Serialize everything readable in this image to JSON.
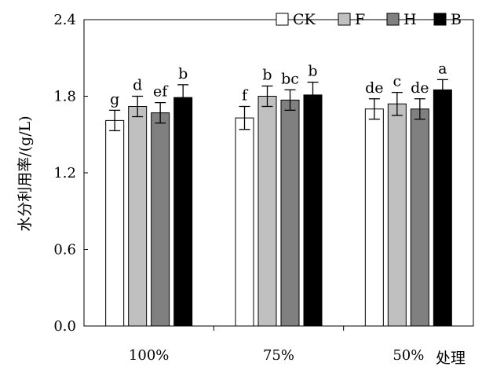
{
  "chart_data": {
    "type": "bar",
    "title": "",
    "xlabel": "处理",
    "ylabel": "水分利用率/(g/L)",
    "ylim": [
      0,
      2.4
    ],
    "yticks": [
      "0.0",
      "0.6",
      "1.2",
      "1.8",
      "2.4"
    ],
    "categories": [
      "100%",
      "75%",
      "50%"
    ],
    "legend_position": "top-right",
    "series": [
      {
        "name": "CK",
        "color": "#ffffff",
        "values": [
          1.61,
          1.63,
          1.7
        ],
        "errors": [
          0.08,
          0.09,
          0.08
        ],
        "letters": [
          "g",
          "f",
          "de"
        ]
      },
      {
        "name": "F",
        "color": "#c0c0c0",
        "values": [
          1.72,
          1.8,
          1.74
        ],
        "errors": [
          0.08,
          0.08,
          0.09
        ],
        "letters": [
          "d",
          "b",
          "c"
        ]
      },
      {
        "name": "H",
        "color": "#808080",
        "values": [
          1.67,
          1.77,
          1.7
        ],
        "errors": [
          0.08,
          0.08,
          0.08
        ],
        "letters": [
          "ef",
          "bc",
          "de"
        ]
      },
      {
        "name": "B",
        "color": "#000000",
        "values": [
          1.79,
          1.81,
          1.85
        ],
        "errors": [
          0.1,
          0.1,
          0.08
        ],
        "letters": [
          "b",
          "b",
          "a"
        ]
      }
    ]
  }
}
